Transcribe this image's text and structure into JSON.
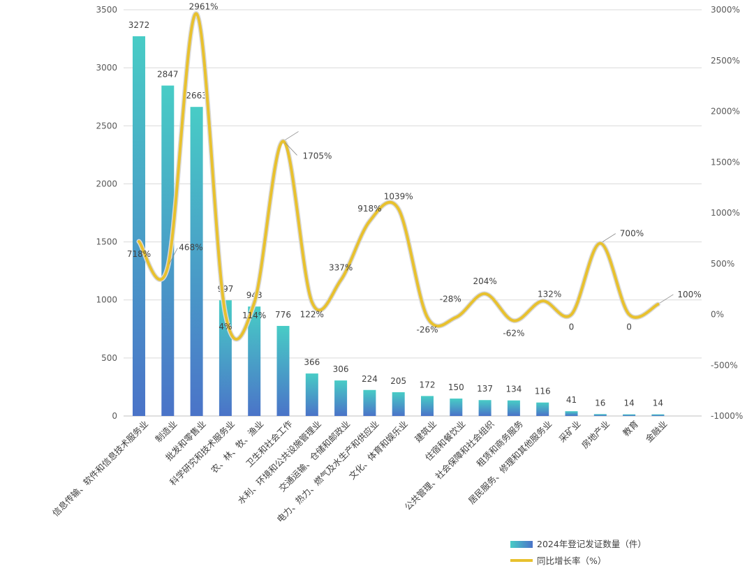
{
  "chart_data": {
    "type": "bar+line",
    "categories": [
      "信息传输、软件和信息技术服务业",
      "制造业",
      "批发和零售业",
      "科学研究和技术服务业",
      "农、林、牧、渔业",
      "卫生和社会工作",
      "水利、环境和公共设施管理业",
      "交通运输、仓储和邮政业",
      "电力、热力、燃气及水生产和供应业",
      "文化、体育和娱乐业",
      "建筑业",
      "住宿和餐饮业",
      "公共管理、社会保障和社会组织",
      "租赁和商务服务",
      "居民服务、修理和其他服务业",
      "采矿业",
      "房地产业",
      "教育",
      "金融业"
    ],
    "series": [
      {
        "name": "2024年登记发证数量（件）",
        "type": "bar",
        "axis": "left",
        "values": [
          3272,
          2847,
          2663,
          997,
          943,
          776,
          366,
          306,
          224,
          205,
          172,
          150,
          137,
          134,
          116,
          41,
          16,
          14,
          14
        ],
        "labels": [
          "3272",
          "2847",
          "2663",
          "997",
          "943",
          "776",
          "366",
          "306",
          "224",
          "205",
          "172",
          "150",
          "137",
          "134",
          "116",
          "41",
          "16",
          "14",
          "14"
        ]
      },
      {
        "name": "同比增长率（%）",
        "type": "line",
        "axis": "right",
        "values": [
          718,
          468,
          2961,
          4,
          114,
          1705,
          122,
          337,
          918,
          1039,
          -26,
          -28,
          204,
          -62,
          132,
          0,
          700,
          0,
          100
        ],
        "labels": [
          "718%",
          "468%",
          "2961%",
          "4%",
          "114%",
          "1705%",
          "122%",
          "337%",
          "918%",
          "1039%",
          "-26%",
          "-28%",
          "204%",
          "-62%",
          "132%",
          "0",
          "700%",
          "0",
          "100%"
        ]
      }
    ],
    "y_left": {
      "min": 0,
      "max": 3500,
      "ticks": [
        0,
        500,
        1000,
        1500,
        2000,
        2500,
        3000,
        3500
      ],
      "tick_labels": [
        "0",
        "500",
        "1000",
        "1500",
        "2000",
        "2500",
        "3000",
        "3500"
      ]
    },
    "y_right": {
      "min": -1000,
      "max": 3000,
      "ticks": [
        -1000,
        -500,
        0,
        500,
        1000,
        1500,
        2000,
        2500,
        3000
      ],
      "tick_labels": [
        "-1000%",
        "-500%",
        "0%",
        "500%",
        "1000%",
        "1500%",
        "2000%",
        "2500%",
        "3000%"
      ]
    },
    "grid": true,
    "legend_position": "bottom-right",
    "colors": {
      "bar_top": "#48ccc6",
      "bar_bottom": "#4a73c8",
      "line": "#e8c12e",
      "line_halo": "#d9d9d9",
      "grid": "#d9d9d9",
      "axis": "#bfbfbf"
    }
  }
}
